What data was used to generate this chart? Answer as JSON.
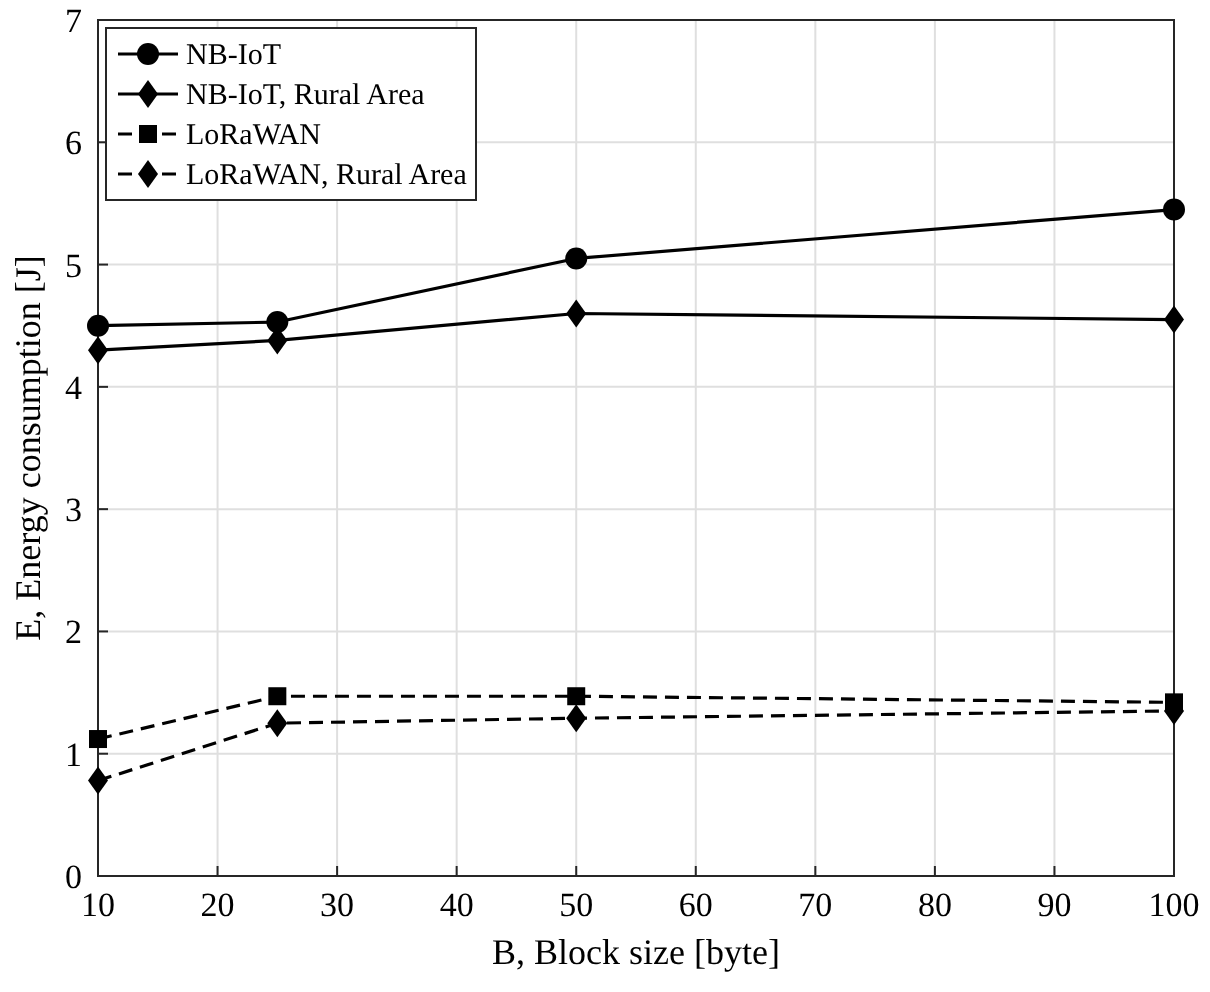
{
  "chart_data": {
    "type": "line",
    "xlabel": "B, Block size [byte]",
    "ylabel": "E, Energy consumption [J]",
    "x": [
      10,
      25,
      50,
      100
    ],
    "series": [
      {
        "name": "NB-IoT",
        "color": "#000000",
        "values": [
          4.5,
          4.53,
          5.05,
          5.45
        ],
        "marker": "circle",
        "line_style": "solid"
      },
      {
        "name": "NB-IoT, Rural Area",
        "color": "#000000",
        "values": [
          4.3,
          4.38,
          4.6,
          4.55
        ],
        "marker": "diamond",
        "line_style": "solid"
      },
      {
        "name": "LoRaWAN",
        "color": "#000000",
        "values": [
          1.12,
          1.47,
          1.47,
          1.42
        ],
        "marker": "square",
        "line_style": "dashed"
      },
      {
        "name": "LoRaWAN, Rural Area",
        "color": "#000000",
        "values": [
          0.78,
          1.25,
          1.29,
          1.35
        ],
        "marker": "diamond",
        "line_style": "dashed"
      }
    ],
    "xlim": [
      10,
      100
    ],
    "xticks": [
      10,
      20,
      30,
      40,
      50,
      60,
      70,
      80,
      90,
      100
    ],
    "ylim": [
      0,
      7
    ],
    "yticks": [
      0,
      1,
      2,
      3,
      4,
      5,
      6,
      7
    ],
    "grid": true,
    "legend": "top left"
  }
}
